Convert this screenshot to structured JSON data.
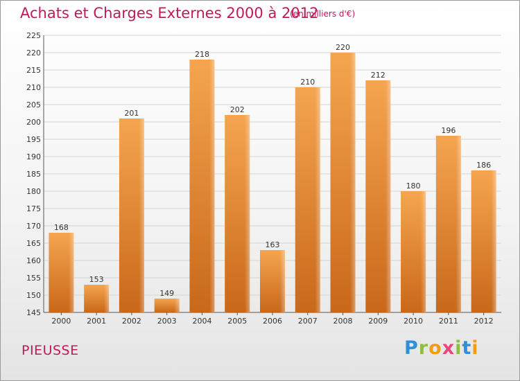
{
  "header": {
    "title": "Achats et Charges Externes 2000 à 2012",
    "unit": "(en milliers d'€)"
  },
  "footer": {
    "commune": "PIEUSSE",
    "brand": "Proxiti"
  },
  "colors": {
    "title": "#c2185b",
    "bar_light": "#f5a54f",
    "bar_dark": "#c8681a"
  },
  "chart_data": {
    "type": "bar",
    "title": "Achats et Charges Externes 2000 à 2012",
    "xlabel": "",
    "ylabel": "",
    "categories": [
      "2000",
      "2001",
      "2002",
      "2003",
      "2004",
      "2005",
      "2006",
      "2007",
      "2008",
      "2009",
      "2010",
      "2011",
      "2012"
    ],
    "values": [
      168,
      153,
      201,
      149,
      218,
      202,
      163,
      210,
      220,
      212,
      180,
      196,
      186
    ],
    "ylim": [
      145,
      225
    ],
    "yticks": [
      145,
      150,
      155,
      160,
      165,
      170,
      175,
      180,
      185,
      190,
      195,
      200,
      205,
      210,
      215,
      220,
      225
    ],
    "grid": true,
    "legend": "none"
  }
}
